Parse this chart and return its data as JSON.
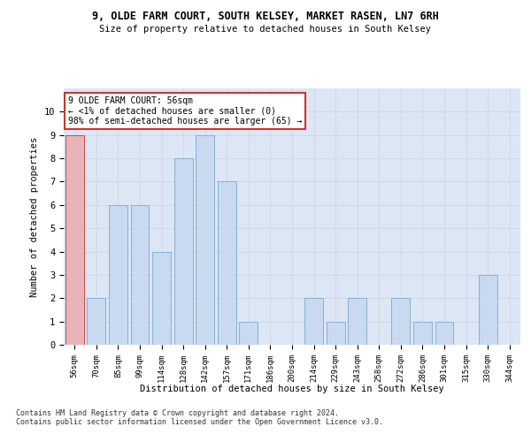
{
  "title1": "9, OLDE FARM COURT, SOUTH KELSEY, MARKET RASEN, LN7 6RH",
  "title2": "Size of property relative to detached houses in South Kelsey",
  "xlabel": "Distribution of detached houses by size in South Kelsey",
  "ylabel": "Number of detached properties",
  "categories": [
    "56sqm",
    "70sqm",
    "85sqm",
    "99sqm",
    "114sqm",
    "128sqm",
    "142sqm",
    "157sqm",
    "171sqm",
    "186sqm",
    "200sqm",
    "214sqm",
    "229sqm",
    "243sqm",
    "258sqm",
    "272sqm",
    "286sqm",
    "301sqm",
    "315sqm",
    "330sqm",
    "344sqm"
  ],
  "values": [
    9,
    2,
    6,
    6,
    4,
    8,
    9,
    7,
    1,
    0,
    0,
    2,
    1,
    2,
    0,
    2,
    1,
    1,
    0,
    3,
    0
  ],
  "bar_color": "#c9d9f0",
  "bar_edge_color": "#7aaad0",
  "highlight_index": 0,
  "highlight_bar_color": "#e8b4b8",
  "highlight_bar_edge_color": "#cc3333",
  "ylim": [
    0,
    11
  ],
  "yticks": [
    0,
    1,
    2,
    3,
    4,
    5,
    6,
    7,
    8,
    9,
    10,
    11
  ],
  "annotation_text": "9 OLDE FARM COURT: 56sqm\n← <1% of detached houses are smaller (0)\n98% of semi-detached houses are larger (65) →",
  "annotation_box_color": "#ffffff",
  "annotation_box_edge": "#cc3333",
  "footer1": "Contains HM Land Registry data © Crown copyright and database right 2024.",
  "footer2": "Contains public sector information licensed under the Open Government Licence v3.0.",
  "grid_color": "#d0d8e8",
  "background_color": "#dce6f5"
}
